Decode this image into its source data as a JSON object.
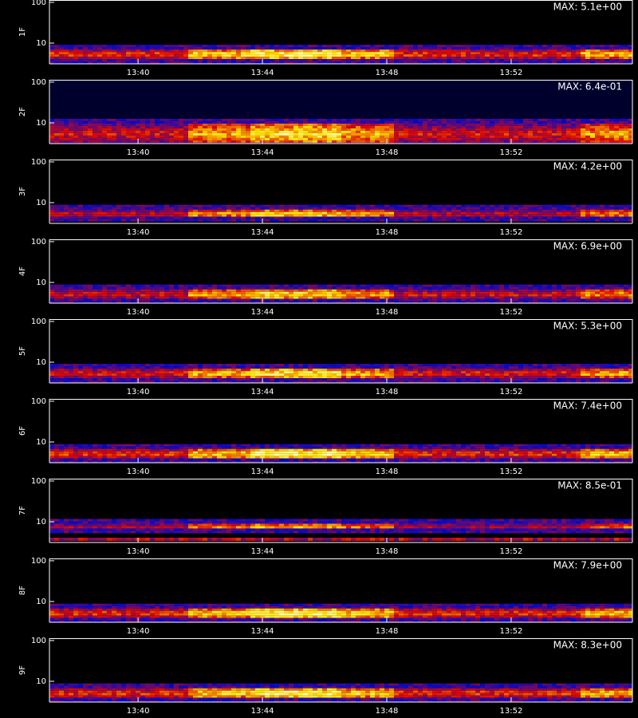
{
  "chart_data": [
    {
      "type": "heatmap",
      "ylabel": "1F",
      "annotation": "MAX: 5.1e+00",
      "xlim": [
        817.15,
        835.9
      ],
      "xticks": [
        {
          "value": 820,
          "label": "13:40"
        },
        {
          "value": 824,
          "label": "13:44"
        },
        {
          "value": 828,
          "label": "13:48"
        },
        {
          "value": 832,
          "label": "13:52"
        }
      ],
      "ylim": [
        3.1,
        114
      ],
      "yticks": [
        10,
        100
      ],
      "log_y": true
    },
    {
      "type": "heatmap",
      "ylabel": "2F",
      "annotation": "MAX: 6.4e-01",
      "xlim": [
        817.15,
        835.9
      ],
      "xticks": [
        {
          "value": 820,
          "label": "13:40"
        },
        {
          "value": 824,
          "label": "13:44"
        },
        {
          "value": 828,
          "label": "13:48"
        },
        {
          "value": 832,
          "label": "13:52"
        }
      ],
      "ylim": [
        3.1,
        114
      ],
      "yticks": [
        10,
        100
      ],
      "log_y": true
    },
    {
      "type": "heatmap",
      "ylabel": "3F",
      "annotation": "MAX: 4.2e+00",
      "xlim": [
        817.15,
        835.9
      ],
      "xticks": [
        {
          "value": 820,
          "label": "13:40"
        },
        {
          "value": 824,
          "label": "13:44"
        },
        {
          "value": 828,
          "label": "13:48"
        },
        {
          "value": 832,
          "label": "13:52"
        }
      ],
      "ylim": [
        3.1,
        114
      ],
      "yticks": [
        10,
        100
      ],
      "log_y": true
    },
    {
      "type": "heatmap",
      "ylabel": "4F",
      "annotation": "MAX: 6.9e+00",
      "xlim": [
        817.15,
        835.9
      ],
      "xticks": [
        {
          "value": 820,
          "label": "13:40"
        },
        {
          "value": 824,
          "label": "13:44"
        },
        {
          "value": 828,
          "label": "13:48"
        },
        {
          "value": 832,
          "label": "13:52"
        }
      ],
      "ylim": [
        3.1,
        114
      ],
      "yticks": [
        10,
        100
      ],
      "log_y": true
    },
    {
      "type": "heatmap",
      "ylabel": "5F",
      "annotation": "MAX: 5.3e+00",
      "xlim": [
        817.15,
        835.9
      ],
      "xticks": [
        {
          "value": 820,
          "label": "13:40"
        },
        {
          "value": 824,
          "label": "13:44"
        },
        {
          "value": 828,
          "label": "13:48"
        },
        {
          "value": 832,
          "label": "13:52"
        }
      ],
      "ylim": [
        3.1,
        114
      ],
      "yticks": [
        10,
        100
      ],
      "log_y": true
    },
    {
      "type": "heatmap",
      "ylabel": "6F",
      "annotation": "MAX: 7.4e+00",
      "xlim": [
        817.15,
        835.9
      ],
      "xticks": [
        {
          "value": 820,
          "label": "13:40"
        },
        {
          "value": 824,
          "label": "13:44"
        },
        {
          "value": 828,
          "label": "13:48"
        },
        {
          "value": 832,
          "label": "13:52"
        }
      ],
      "ylim": [
        3.1,
        114
      ],
      "yticks": [
        10,
        100
      ],
      "log_y": true
    },
    {
      "type": "heatmap",
      "ylabel": "7F",
      "annotation": "MAX: 8.5e-01",
      "xlim": [
        817.15,
        835.9
      ],
      "xticks": [
        {
          "value": 820,
          "label": "13:40"
        },
        {
          "value": 824,
          "label": "13:44"
        },
        {
          "value": 828,
          "label": "13:48"
        },
        {
          "value": 832,
          "label": "13:52"
        }
      ],
      "ylim": [
        3.1,
        114
      ],
      "yticks": [
        10,
        100
      ],
      "log_y": true
    },
    {
      "type": "heatmap",
      "ylabel": "8F",
      "annotation": "MAX: 7.9e+00",
      "xlim": [
        817.15,
        835.9
      ],
      "xticks": [
        {
          "value": 820,
          "label": "13:40"
        },
        {
          "value": 824,
          "label": "13:44"
        },
        {
          "value": 828,
          "label": "13:48"
        },
        {
          "value": 832,
          "label": "13:52"
        }
      ],
      "ylim": [
        3.1,
        114
      ],
      "yticks": [
        10,
        100
      ],
      "log_y": true
    },
    {
      "type": "heatmap",
      "ylabel": "9F",
      "annotation": "MAX: 8.3e+00",
      "xlim": [
        817.15,
        835.9
      ],
      "xticks": [
        {
          "value": 820,
          "label": "13:40"
        },
        {
          "value": 824,
          "label": "13:44"
        },
        {
          "value": 828,
          "label": "13:48"
        },
        {
          "value": 832,
          "label": "13:52"
        }
      ],
      "ylim": [
        3.1,
        114
      ],
      "yticks": [
        10,
        100
      ],
      "log_y": true
    }
  ]
}
